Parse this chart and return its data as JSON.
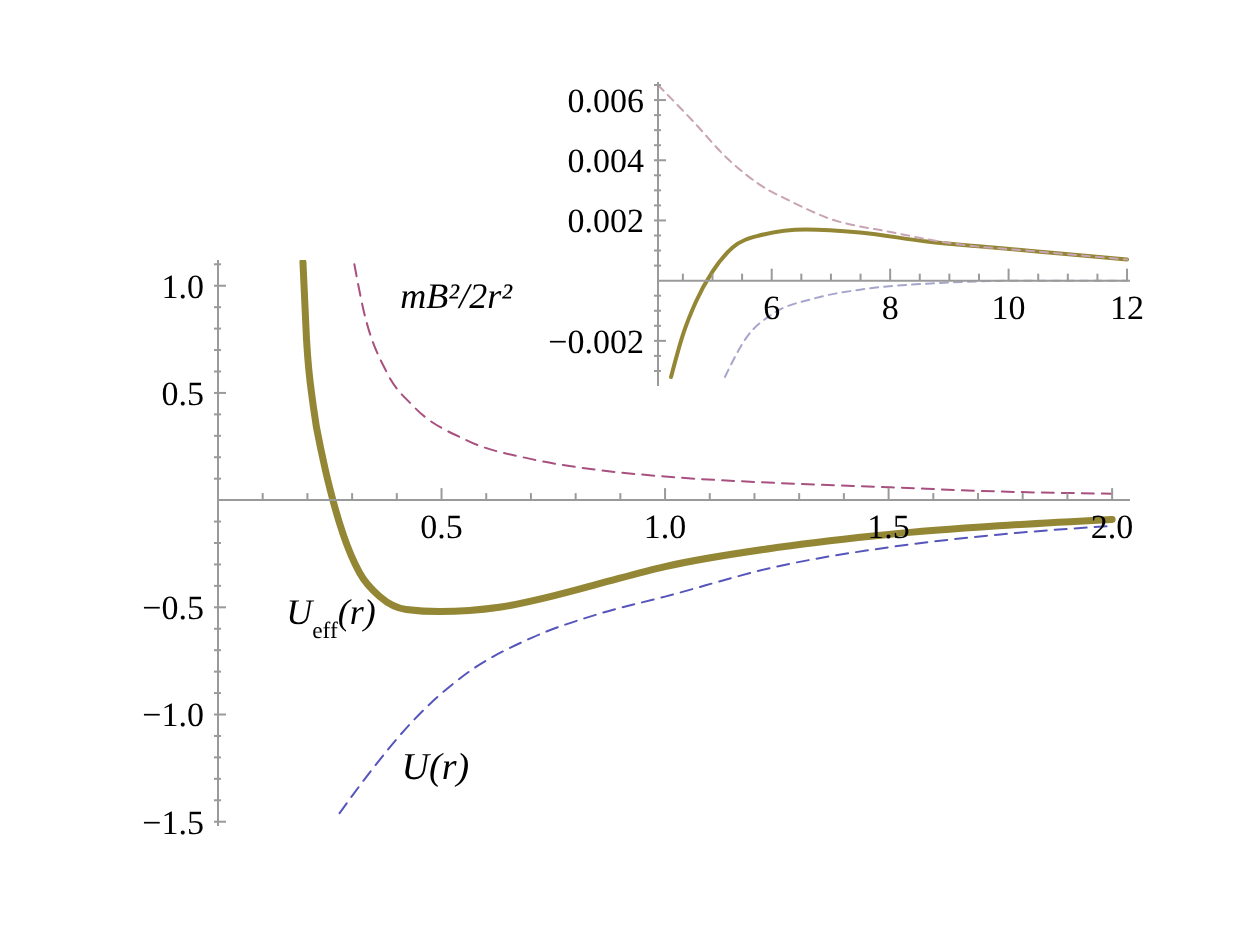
{
  "chart_data": [
    {
      "type": "line",
      "xlim": [
        0,
        2.04
      ],
      "ylim": [
        -1.52,
        1.12
      ],
      "xticks": [
        {
          "value": 0.1,
          "label": null
        },
        {
          "value": 0.2,
          "label": null
        },
        {
          "value": 0.3,
          "label": null
        },
        {
          "value": 0.4,
          "label": null
        },
        0.5,
        {
          "value": 0.6,
          "label": null
        },
        {
          "value": 0.7,
          "label": null
        },
        {
          "value": 0.8,
          "label": null
        },
        {
          "value": 0.9,
          "label": null
        },
        {
          "value": 1,
          "label": "1.0"
        },
        {
          "value": 1.1,
          "label": null
        },
        {
          "value": 1.2,
          "label": null
        },
        {
          "value": 1.3,
          "label": null
        },
        {
          "value": 1.4,
          "label": null
        },
        1.5,
        {
          "value": 1.6,
          "label": null
        },
        {
          "value": 1.7,
          "label": null
        },
        {
          "value": 1.8,
          "label": null
        },
        {
          "value": 1.9,
          "label": null
        },
        {
          "value": 2,
          "label": "2.0"
        }
      ],
      "yticks": [
        {
          "value": -1.5,
          "label": "−1.5"
        },
        {
          "value": -1.4,
          "label": null
        },
        {
          "value": -1.3,
          "label": null
        },
        {
          "value": -1.2,
          "label": null
        },
        {
          "value": -1.1,
          "label": null
        },
        {
          "value": -1,
          "label": "−1.0"
        },
        {
          "value": -0.9,
          "label": null
        },
        {
          "value": -0.8,
          "label": null
        },
        {
          "value": -0.7,
          "label": null
        },
        {
          "value": -0.6,
          "label": null
        },
        {
          "value": -0.5,
          "label": "−0.5"
        },
        {
          "value": -0.4,
          "label": null
        },
        {
          "value": -0.3,
          "label": null
        },
        {
          "value": -0.2,
          "label": null
        },
        {
          "value": -0.1,
          "label": null
        },
        {
          "value": 0.1,
          "label": null
        },
        {
          "value": 0.2,
          "label": null
        },
        {
          "value": 0.3,
          "label": null
        },
        {
          "value": 0.4,
          "label": null
        },
        0.5,
        {
          "value": 0.6,
          "label": null
        },
        {
          "value": 0.7,
          "label": null
        },
        {
          "value": 0.8,
          "label": null
        },
        {
          "value": 0.9,
          "label": null
        },
        {
          "value": 1,
          "label": "1.0"
        },
        {
          "value": 1.1,
          "label": null
        }
      ],
      "series": [
        {
          "name": "U$_{eff}$(r)",
          "color": "#938634",
          "line_style": "solid",
          "x": [
            0.19,
            0.198,
            0.213,
            0.235,
            0.257,
            0.28,
            0.317,
            0.362,
            0.421,
            0.496,
            0.629,
            0.763,
            0.853,
            1.0,
            1.254,
            1.5,
            1.746,
            2.0
          ],
          "values": [
            1.11,
            0.75,
            0.44,
            0.19,
            0,
            -0.16,
            -0.34,
            -0.45,
            -0.51,
            -0.52,
            -0.5,
            -0.44,
            -0.39,
            -0.31,
            -0.22,
            -0.16,
            -0.12,
            -0.09
          ]
        },
        {
          "name": "mB²/2r²",
          "color": "#a8507f",
          "line_style": "dashed",
          "x": [
            0.305,
            0.324,
            0.379,
            0.436,
            0.555,
            0.704,
            0.853,
            1.0,
            1.25,
            1.5,
            1.75,
            2.0
          ],
          "values": [
            1.1,
            0.9,
            0.59,
            0.44,
            0.28,
            0.19,
            0.14,
            0.11,
            0.08,
            0.06,
            0.04,
            0.03
          ]
        },
        {
          "name": "U(r)",
          "color": "#5555bb",
          "line_style": "dashed",
          "x": [
            0.272,
            0.347,
            0.436,
            0.555,
            0.704,
            0.853,
            1.0,
            1.25,
            1.5,
            1.75,
            2.0
          ],
          "values": [
            -1.46,
            -1.25,
            -1.03,
            -0.81,
            -0.64,
            -0.53,
            -0.45,
            -0.31,
            -0.22,
            -0.16,
            -0.12
          ]
        }
      ]
    },
    {
      "type": "line",
      "xlim": [
        4.08,
        12.05
      ],
      "ylim": [
        -0.0035,
        0.0066
      ],
      "xticks": [
        {
          "value": 4.5,
          "label": null
        },
        {
          "value": 5,
          "label": null
        },
        {
          "value": 5.5,
          "label": null
        },
        6,
        {
          "value": 6.5,
          "label": null
        },
        {
          "value": 7,
          "label": null
        },
        {
          "value": 7.5,
          "label": null
        },
        8,
        {
          "value": 8.5,
          "label": null
        },
        {
          "value": 9,
          "label": null
        },
        {
          "value": 9.5,
          "label": null
        },
        10,
        {
          "value": 10.5,
          "label": null
        },
        {
          "value": 11,
          "label": null
        },
        {
          "value": 11.5,
          "label": null
        },
        12
      ],
      "yticks": [
        {
          "value": -0.003,
          "label": null
        },
        {
          "value": -0.0025,
          "label": null
        },
        {
          "value": -0.002,
          "label": "−0.002"
        },
        {
          "value": -0.0015,
          "label": null
        },
        {
          "value": -0.001,
          "label": null
        },
        {
          "value": -0.0005,
          "label": null
        },
        {
          "value": 0.0005,
          "label": null
        },
        {
          "value": 0.001,
          "label": null
        },
        {
          "value": 0.0015,
          "label": null
        },
        0.002,
        {
          "value": 0.0025,
          "label": null
        },
        {
          "value": 0.003,
          "label": null
        },
        {
          "value": 0.0035,
          "label": null
        },
        0.004,
        {
          "value": 0.0045,
          "label": null
        },
        {
          "value": 0.005,
          "label": null
        },
        {
          "value": 0.0055,
          "label": null
        },
        0.006,
        {
          "value": 0.0065,
          "label": null
        }
      ],
      "series": [
        {
          "color": "#938634",
          "line_style": "solid",
          "x": [
            4.3,
            4.5,
            4.72,
            5.0,
            5.34,
            5.79,
            6.58,
            7.49,
            8.62,
            9.74,
            10.87,
            12.0
          ],
          "values": [
            -0.0032,
            -0.0018,
            -0.0007,
            0.0003,
            0.0011,
            0.0015,
            0.0017,
            0.0016,
            0.0013,
            0.0011,
            0.0009,
            0.0007
          ]
        },
        {
          "color": "#c8a4b4",
          "line_style": "dashed",
          "x": [
            4.08,
            4.67,
            5.23,
            5.79,
            6.36,
            6.92,
            8.05,
            9.18,
            10.3,
            12.0
          ],
          "values": [
            0.0065,
            0.0053,
            0.0041,
            0.0032,
            0.0026,
            0.0021,
            0.0016,
            0.0012,
            0.001,
            0.0007
          ]
        },
        {
          "color": "#a6a6cc",
          "line_style": "dashed",
          "x": [
            5.21,
            5.57,
            6.02,
            6.7,
            7.49,
            8.62,
            10.3,
            12.0
          ],
          "values": [
            -0.0032,
            -0.0019,
            -0.0011,
            -0.0006,
            -0.0003,
            -0.0001,
            0,
            0
          ]
        }
      ]
    }
  ]
}
